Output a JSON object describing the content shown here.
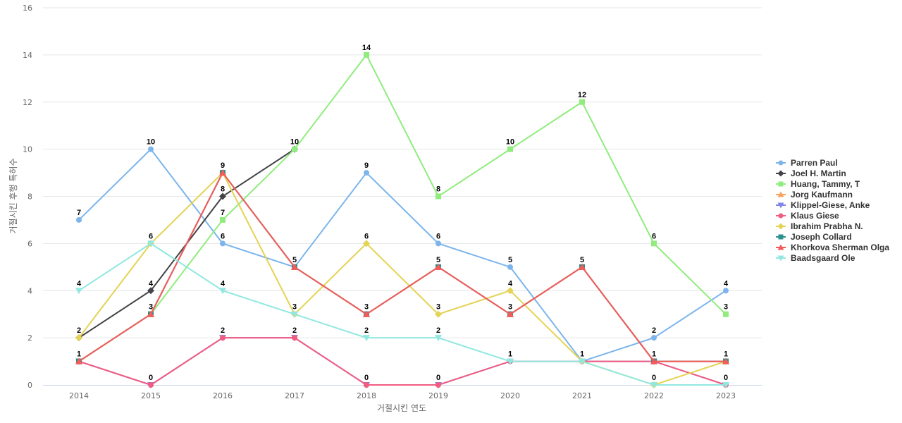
{
  "chart_data": {
    "type": "line",
    "xlabel": "거절시킨 연도",
    "ylabel": "거절시킨 후행 특허수",
    "ylim": [
      0,
      16
    ],
    "yticks": [
      0,
      2,
      4,
      6,
      8,
      10,
      12,
      14,
      16
    ],
    "grid": true,
    "legend_position": "right",
    "categories": [
      "2014",
      "2015",
      "2016",
      "2017",
      "2018",
      "2019",
      "2020",
      "2021",
      "2022",
      "2023"
    ],
    "series": [
      {
        "name": "Parren Paul",
        "color": "#7cb5ec",
        "marker": "circle",
        "values": [
          7,
          10,
          6,
          5,
          9,
          6,
          5,
          1,
          2,
          4
        ]
      },
      {
        "name": "Joel H. Martin",
        "color": "#434348",
        "marker": "diamond",
        "values": [
          2,
          4,
          8,
          10,
          null,
          null,
          null,
          null,
          null,
          null
        ]
      },
      {
        "name": "Huang, Tammy, T",
        "color": "#90ed7d",
        "marker": "square",
        "values": [
          1,
          3,
          7,
          10,
          14,
          8,
          10,
          12,
          6,
          3
        ]
      },
      {
        "name": "Jorg Kaufmann",
        "color": "#f7a35c",
        "marker": "triangle",
        "values": [
          1,
          3,
          9,
          5,
          3,
          5,
          3,
          5,
          1,
          1
        ]
      },
      {
        "name": "Klippel-Giese, Anke",
        "color": "#8085e9",
        "marker": "triangle-down",
        "values": [
          1,
          0,
          2,
          2,
          0,
          0,
          1,
          1,
          1,
          0
        ]
      },
      {
        "name": "Klaus Giese",
        "color": "#f15c80",
        "marker": "circle",
        "values": [
          1,
          0,
          2,
          2,
          0,
          0,
          1,
          1,
          1,
          0
        ]
      },
      {
        "name": "Ibrahim Prabha N.",
        "color": "#e4d354",
        "marker": "diamond",
        "values": [
          2,
          6,
          9,
          3,
          6,
          3,
          4,
          1,
          0,
          1
        ]
      },
      {
        "name": "Joseph Collard",
        "color": "#2b908f",
        "marker": "square",
        "values": [
          1,
          3,
          9,
          5,
          3,
          5,
          3,
          5,
          1,
          1
        ]
      },
      {
        "name": "Khorkova Sherman Olga",
        "color": "#f45b5b",
        "marker": "triangle",
        "values": [
          1,
          3,
          9,
          5,
          3,
          5,
          3,
          5,
          1,
          1
        ]
      },
      {
        "name": "Baadsgaard Ole",
        "color": "#91e8e1",
        "marker": "triangle-down",
        "values": [
          4,
          6,
          4,
          3,
          2,
          2,
          1,
          1,
          0,
          0
        ]
      }
    ],
    "data_labels": [
      {
        "x": "2014",
        "values": [
          "7",
          "4",
          "2",
          "1"
        ]
      },
      {
        "x": "2015",
        "values": [
          "10",
          "6",
          "4",
          "3",
          "0"
        ]
      },
      {
        "x": "2016",
        "values": [
          "9",
          "8",
          "7",
          "6",
          "4",
          "2"
        ]
      },
      {
        "x": "2017",
        "values": [
          "10",
          "5",
          "3",
          "2"
        ]
      },
      {
        "x": "2018",
        "values": [
          "14",
          "9",
          "6",
          "3",
          "2",
          "0"
        ]
      },
      {
        "x": "2019",
        "values": [
          "8",
          "6",
          "5",
          "3",
          "2",
          "0"
        ]
      },
      {
        "x": "2020",
        "values": [
          "10",
          "5",
          "4",
          "3",
          "1"
        ]
      },
      {
        "x": "2021",
        "values": [
          "12",
          "5",
          "1"
        ]
      },
      {
        "x": "2022",
        "values": [
          "6",
          "2",
          "1",
          "0"
        ]
      },
      {
        "x": "2023",
        "values": [
          "4",
          "3",
          "1",
          "0"
        ]
      }
    ]
  }
}
